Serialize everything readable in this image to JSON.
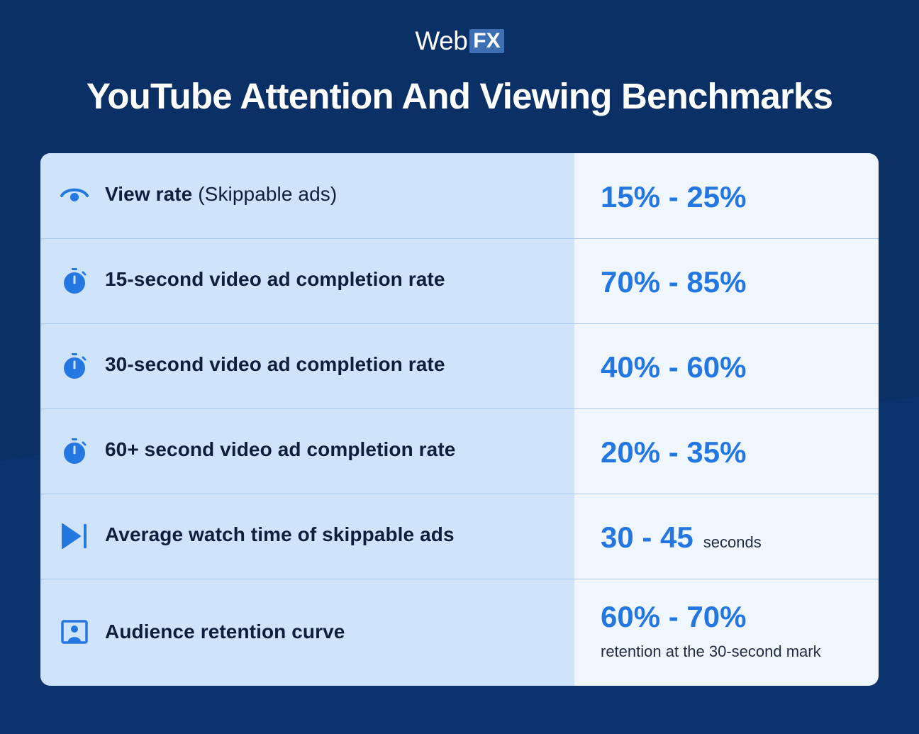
{
  "brand": {
    "part1": "Web",
    "part2": "FX"
  },
  "title": "YouTube Attention And Viewing Benchmarks",
  "colors": {
    "background": "#0b3066",
    "accent": "#2477e0",
    "left_column": "#cfe3fb",
    "right_column": "#f0f6fd"
  },
  "rows": [
    {
      "icon": "eye-icon",
      "label": "View rate",
      "label_suffix": " (Skippable ads)",
      "value": "15% - 25%",
      "unit": "",
      "note": ""
    },
    {
      "icon": "stopwatch-icon",
      "label": "15-second video ad completion rate",
      "label_suffix": "",
      "value": "70% - 85%",
      "unit": "",
      "note": ""
    },
    {
      "icon": "stopwatch-icon",
      "label": "30-second video ad completion rate",
      "label_suffix": "",
      "value": "40% - 60%",
      "unit": "",
      "note": ""
    },
    {
      "icon": "stopwatch-icon",
      "label": "60+ second video ad completion rate",
      "label_suffix": "",
      "value": "20% - 35%",
      "unit": "",
      "note": ""
    },
    {
      "icon": "skip-forward-icon",
      "label": "Average watch time of skippable ads",
      "label_suffix": "",
      "value": "30 - 45",
      "unit": "seconds",
      "note": ""
    },
    {
      "icon": "user-portrait-icon",
      "label": "Audience retention curve",
      "label_suffix": "",
      "value": "60% - 70%",
      "unit": "",
      "note": "retention at the 30-second mark"
    }
  ]
}
